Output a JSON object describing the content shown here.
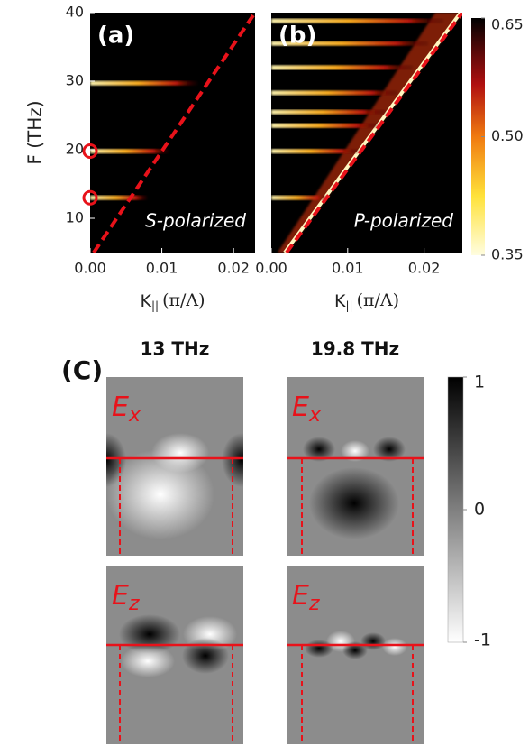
{
  "chart_data": [
    {
      "type": "heatmap",
      "panel_label": "(a)",
      "annotation": "S-polarized",
      "y_label": "F (THz)",
      "x_label": {
        "symbol": "K",
        "sub": "||",
        "unit": "(π/Λ)"
      },
      "xlim": [
        0,
        0.023
      ],
      "ylim": [
        5,
        40
      ],
      "xticks": [
        {
          "value": 0,
          "label": "0.00"
        },
        0.01,
        0.02
      ],
      "yticks": [
        10,
        20,
        30,
        40
      ],
      "modes": {
        "F": [
          29.7,
          19.8,
          13
        ],
        "k_end": [
          0.015,
          0.011,
          0.008
        ]
      },
      "light_line": {
        "k": [
          0.0005,
          0.023
        ],
        "F": [
          5,
          40
        ],
        "color": "#e8121a"
      },
      "markers": {
        "k": [
          0,
          0
        ],
        "F": [
          19.8,
          13
        ],
        "color": "#e8121a"
      }
    },
    {
      "type": "heatmap",
      "panel_label": "(b)",
      "annotation": "P-polarized",
      "x_label": {
        "symbol": "K",
        "sub": "||",
        "unit": "(π/Λ)"
      },
      "xlim": [
        0,
        0.025
      ],
      "ylim": [
        5,
        40
      ],
      "xticks": [
        {
          "value": 0,
          "label": "0.00"
        },
        0.01,
        0.02
      ],
      "modes": {
        "F": [
          38.8,
          35.5,
          32,
          28.3,
          25.5,
          23.5,
          19.8,
          13
        ],
        "k_end": [
          0.0225,
          0.0205,
          0.0185,
          0.0165,
          0.015,
          0.014,
          0.0115,
          0.0075
        ]
      },
      "light_line": {
        "k": [
          0.002,
          0.025
        ],
        "F": [
          5,
          40
        ],
        "color": "#e8121a"
      },
      "colorbar": {
        "lim": [
          0.35,
          0.65
        ],
        "ticks": [
          0.65,
          {
            "value": 0.5,
            "label": "0.50"
          },
          0.35
        ]
      }
    }
  ],
  "panel_c": {
    "label": "(C)",
    "columns": [
      "13 THz",
      "19.8 THz"
    ],
    "rows": [
      {
        "symbol": "E",
        "sub": "x"
      },
      {
        "symbol": "E",
        "sub": "z"
      }
    ],
    "colorbar": {
      "lim": [
        -1,
        1
      ],
      "ticks": [
        1,
        0,
        -1
      ]
    }
  }
}
